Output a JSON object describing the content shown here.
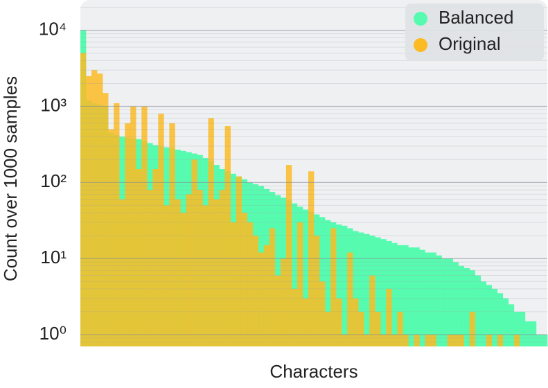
{
  "chart_data": {
    "type": "bar",
    "x_label": "Characters",
    "y_label": "Count over 1000 samples",
    "categories": [
      null,
      null,
      null,
      null,
      null,
      null,
      null,
      null,
      null,
      null,
      null,
      null,
      null,
      null,
      null,
      null,
      null,
      null,
      null,
      null,
      null,
      null,
      null,
      null,
      null,
      null,
      null,
      null,
      null,
      null,
      null,
      null,
      null,
      null,
      null,
      null,
      null,
      null,
      null,
      null,
      null,
      null,
      null,
      null,
      null,
      null,
      null,
      null,
      null,
      null,
      null,
      null,
      null,
      null,
      null,
      null,
      null,
      null,
      null,
      null,
      null,
      null,
      null,
      null,
      null,
      null,
      null,
      null,
      null,
      null,
      null,
      null,
      null,
      null,
      null,
      null,
      null,
      null,
      null,
      null,
      null,
      null,
      null,
      null
    ],
    "series": [
      {
        "name": "Balanced",
        "color": "#57fbb0",
        "values": [
          10000,
          1200,
          1100,
          1050,
          1000,
          450,
          420,
          400,
          390,
          380,
          370,
          350,
          330,
          310,
          300,
          290,
          280,
          270,
          260,
          250,
          240,
          230,
          210,
          190,
          170,
          150,
          140,
          130,
          120,
          110,
          100,
          95,
          90,
          82,
          75,
          68,
          63,
          58,
          53,
          48,
          44,
          41,
          38,
          35,
          32,
          30,
          28,
          27,
          25,
          23,
          22,
          21,
          20,
          19,
          18,
          17,
          16,
          15,
          15,
          14,
          14,
          13,
          12,
          12,
          11,
          10,
          10,
          9,
          8,
          7.5,
          7,
          6,
          5,
          4.5,
          4,
          3.5,
          3,
          2.5,
          2,
          2,
          1.5,
          1.5,
          1,
          1
        ]
      },
      {
        "name": "Original",
        "color": "#fcbb24",
        "values": [
          5000,
          2500,
          3000,
          2700,
          1500,
          500,
          1100,
          60,
          600,
          1000,
          150,
          1000,
          80,
          150,
          800,
          50,
          600,
          60,
          40,
          70,
          200,
          80,
          50,
          700,
          60,
          80,
          550,
          30,
          120,
          40,
          30,
          20,
          12,
          15,
          25,
          6,
          10,
          170,
          4,
          30,
          3,
          140,
          20,
          5,
          2,
          25,
          3,
          1,
          12,
          3,
          2,
          1,
          6,
          2,
          1,
          4,
          1,
          2,
          1,
          0,
          1,
          0,
          1,
          1,
          0,
          0,
          1,
          1,
          1,
          0,
          2,
          0,
          0,
          1,
          0,
          1,
          0,
          0,
          1,
          0,
          0,
          0,
          0,
          0
        ]
      }
    ],
    "log_y": true,
    "ylim": [
      0.7,
      25000
    ],
    "yticks": [
      {
        "value": 1,
        "label": "10⁰"
      },
      {
        "value": 10,
        "label": "10¹"
      },
      {
        "value": 100,
        "label": "10²"
      },
      {
        "value": 1000,
        "label": "10³"
      },
      {
        "value": 10000,
        "label": "10⁴"
      }
    ],
    "minor_yticks": [
      0.8,
      0.9,
      2,
      3,
      4,
      5,
      6,
      7,
      8,
      9,
      20,
      30,
      40,
      50,
      60,
      70,
      80,
      90,
      200,
      300,
      400,
      500,
      600,
      700,
      800,
      900,
      2000,
      3000,
      4000,
      5000,
      6000,
      7000,
      8000,
      9000,
      20000
    ],
    "grid": true,
    "legend": "upper right"
  }
}
